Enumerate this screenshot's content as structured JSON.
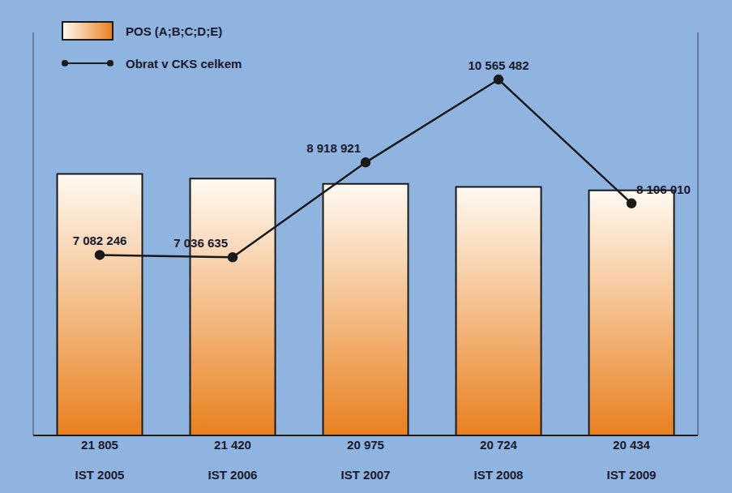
{
  "chart_data": {
    "type": "bar",
    "categories": [
      "IST 2005",
      "IST 2006",
      "IST 2007",
      "IST 2008",
      "IST 2009"
    ],
    "series": [
      {
        "name": "POS (A;B;C;D;E)",
        "type": "bar",
        "color": "#e8801f",
        "values": [
          21805,
          21420,
          20975,
          20724,
          20434
        ],
        "value_labels": [
          "21 805",
          "21 420",
          "20 975",
          "20 724",
          "20 434"
        ]
      },
      {
        "name": "Obrat v CKS celkem",
        "type": "line",
        "axis": "y2",
        "color": "#1a1a1a",
        "marker": "circle",
        "line_style": "solid",
        "values": [
          7082246,
          7036635,
          8918921,
          10565482,
          8106010
        ],
        "value_labels": [
          "7 082 246",
          "7 036 635",
          "8 918 921",
          "10 565 482",
          "8 106 010"
        ]
      }
    ],
    "ylim": [
      0,
      33600
    ],
    "y2lim": [
      3500000,
      11500000
    ],
    "tick_labels": false,
    "data_labels": true,
    "grid": false,
    "legend": "top-left"
  }
}
